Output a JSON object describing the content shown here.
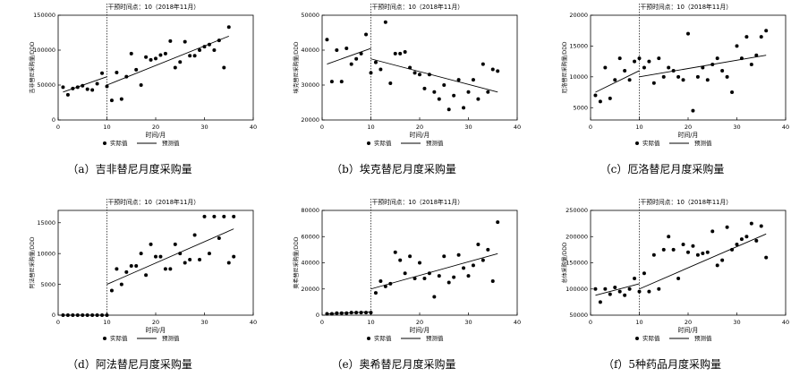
{
  "chart_data": [
    {
      "id": "a",
      "type": "scatter",
      "caption": "（a）吉非替尼月度采购量",
      "annotation": "干预时间点：10（2018年11月）",
      "xlabel": "时间/月",
      "ylabel": "吉非替尼采购量/DDD",
      "xlim": [
        0,
        40
      ],
      "ylim": [
        0,
        150000
      ],
      "xticks": [
        0,
        10,
        20,
        30,
        40
      ],
      "yticks": [
        0,
        50000,
        100000,
        150000
      ],
      "ytick_labels": [
        "0",
        "50000",
        "100000",
        "150000"
      ],
      "intervention_x": 10,
      "legend": [
        "实际值",
        "预测值"
      ],
      "points": [
        [
          1,
          47000
        ],
        [
          2,
          36000
        ],
        [
          3,
          45000
        ],
        [
          4,
          47000
        ],
        [
          5,
          49000
        ],
        [
          6,
          44000
        ],
        [
          7,
          43000
        ],
        [
          8,
          52000
        ],
        [
          9,
          67000
        ],
        [
          10,
          48000
        ],
        [
          11,
          28000
        ],
        [
          12,
          68000
        ],
        [
          13,
          30000
        ],
        [
          14,
          62000
        ],
        [
          15,
          95000
        ],
        [
          16,
          72000
        ],
        [
          17,
          50000
        ],
        [
          18,
          90000
        ],
        [
          19,
          86000
        ],
        [
          20,
          88000
        ],
        [
          21,
          93000
        ],
        [
          22,
          95000
        ],
        [
          23,
          113000
        ],
        [
          24,
          75000
        ],
        [
          25,
          83000
        ],
        [
          26,
          112000
        ],
        [
          27,
          92000
        ],
        [
          28,
          92000
        ],
        [
          29,
          100000
        ],
        [
          30,
          105000
        ],
        [
          31,
          108000
        ],
        [
          32,
          100000
        ],
        [
          33,
          114000
        ],
        [
          34,
          75000
        ],
        [
          35,
          133000
        ]
      ],
      "trend": [
        [
          [
            1,
            40000
          ],
          [
            10,
            62000
          ]
        ],
        [
          [
            10,
            50000
          ],
          [
            35,
            120000
          ]
        ]
      ]
    },
    {
      "id": "b",
      "type": "scatter",
      "caption": "（b）埃克替尼月度采购量",
      "annotation": "干预时间点：10（2018年11月）",
      "xlabel": "时间/月",
      "ylabel": "埃克替尼采购量/DDD",
      "xlim": [
        0,
        40
      ],
      "ylim": [
        20000,
        50000
      ],
      "xticks": [
        0,
        10,
        20,
        30,
        40
      ],
      "yticks": [
        20000,
        30000,
        40000,
        50000
      ],
      "ytick_labels": [
        "20000",
        "30000",
        "40000",
        "50000"
      ],
      "intervention_x": 10,
      "legend": [
        "实际值",
        "预测值"
      ],
      "points": [
        [
          1,
          43000
        ],
        [
          2,
          31000
        ],
        [
          3,
          40000
        ],
        [
          4,
          31000
        ],
        [
          5,
          40500
        ],
        [
          6,
          36000
        ],
        [
          7,
          37500
        ],
        [
          8,
          39000
        ],
        [
          9,
          44500
        ],
        [
          10,
          33500
        ],
        [
          11,
          36500
        ],
        [
          12,
          34500
        ],
        [
          13,
          48000
        ],
        [
          14,
          30500
        ],
        [
          15,
          39000
        ],
        [
          16,
          39000
        ],
        [
          17,
          39500
        ],
        [
          18,
          35000
        ],
        [
          19,
          33500
        ],
        [
          20,
          33000
        ],
        [
          21,
          29000
        ],
        [
          22,
          33000
        ],
        [
          23,
          28000
        ],
        [
          24,
          26000
        ],
        [
          25,
          30000
        ],
        [
          26,
          23000
        ],
        [
          27,
          27000
        ],
        [
          28,
          31500
        ],
        [
          29,
          23500
        ],
        [
          30,
          28000
        ],
        [
          31,
          31500
        ],
        [
          32,
          26000
        ],
        [
          33,
          36000
        ],
        [
          34,
          28000
        ],
        [
          35,
          34500
        ],
        [
          36,
          34000
        ]
      ],
      "trend": [
        [
          [
            1,
            36000
          ],
          [
            10,
            40500
          ]
        ],
        [
          [
            10,
            37500
          ],
          [
            36,
            28000
          ]
        ]
      ]
    },
    {
      "id": "c",
      "type": "scatter",
      "caption": "（c）厄洛替尼月度采购量",
      "annotation": "干预时间点：10（2018年11月）",
      "xlabel": "时间/月",
      "ylabel": "厄洛替尼采购量/DDD",
      "xlim": [
        0,
        40
      ],
      "ylim": [
        3000,
        20000
      ],
      "xticks": [
        0,
        10,
        20,
        30,
        40
      ],
      "yticks": [
        5000,
        10000,
        15000,
        20000
      ],
      "ytick_labels": [
        "5000",
        "10000",
        "15000",
        "20000"
      ],
      "intervention_x": 10,
      "legend": [
        "实际值",
        "预测值"
      ],
      "points": [
        [
          1,
          7000
        ],
        [
          2,
          6000
        ],
        [
          3,
          11500
        ],
        [
          4,
          6500
        ],
        [
          5,
          9500
        ],
        [
          6,
          13000
        ],
        [
          7,
          11000
        ],
        [
          8,
          9500
        ],
        [
          9,
          12500
        ],
        [
          10,
          13000
        ],
        [
          11,
          11500
        ],
        [
          12,
          12500
        ],
        [
          13,
          9000
        ],
        [
          14,
          13000
        ],
        [
          15,
          10000
        ],
        [
          16,
          11500
        ],
        [
          17,
          11000
        ],
        [
          18,
          10000
        ],
        [
          19,
          9500
        ],
        [
          20,
          17000
        ],
        [
          21,
          4500
        ],
        [
          22,
          10000
        ],
        [
          23,
          11500
        ],
        [
          24,
          9500
        ],
        [
          25,
          12000
        ],
        [
          26,
          13000
        ],
        [
          27,
          11000
        ],
        [
          28,
          10000
        ],
        [
          29,
          7500
        ],
        [
          30,
          15000
        ],
        [
          31,
          13000
        ],
        [
          32,
          16500
        ],
        [
          33,
          12000
        ],
        [
          34,
          13500
        ],
        [
          35,
          16500
        ],
        [
          36,
          17500
        ]
      ],
      "trend": [
        [
          [
            1,
            7500
          ],
          [
            10,
            11000
          ]
        ],
        [
          [
            10,
            10000
          ],
          [
            36,
            13500
          ]
        ]
      ]
    },
    {
      "id": "d",
      "type": "scatter",
      "caption": "（d）阿法替尼月度采购量",
      "annotation": "干预时间点：10（2018年11月）",
      "xlabel": "时间/月",
      "ylabel": "阿法替尼采购量/DDD",
      "xlim": [
        0,
        40
      ],
      "ylim": [
        0,
        17000
      ],
      "xticks": [
        0,
        10,
        20,
        30,
        40
      ],
      "yticks": [
        0,
        5000,
        10000,
        15000
      ],
      "ytick_labels": [
        "0",
        "5000",
        "10000",
        "15000"
      ],
      "intervention_x": 10,
      "legend": [
        "实际值",
        "预测值"
      ],
      "points": [
        [
          1,
          0
        ],
        [
          2,
          0
        ],
        [
          3,
          0
        ],
        [
          4,
          0
        ],
        [
          5,
          0
        ],
        [
          6,
          0
        ],
        [
          7,
          0
        ],
        [
          8,
          0
        ],
        [
          9,
          0
        ],
        [
          10,
          0
        ],
        [
          11,
          4000
        ],
        [
          12,
          7500
        ],
        [
          13,
          5000
        ],
        [
          14,
          7000
        ],
        [
          15,
          8000
        ],
        [
          16,
          8000
        ],
        [
          17,
          10000
        ],
        [
          18,
          6500
        ],
        [
          19,
          11500
        ],
        [
          20,
          9500
        ],
        [
          21,
          9500
        ],
        [
          22,
          7500
        ],
        [
          23,
          7500
        ],
        [
          24,
          11500
        ],
        [
          25,
          10000
        ],
        [
          26,
          8500
        ],
        [
          27,
          9000
        ],
        [
          28,
          13000
        ],
        [
          29,
          9000
        ],
        [
          30,
          16000
        ],
        [
          31,
          10000
        ],
        [
          32,
          16000
        ],
        [
          33,
          12500
        ],
        [
          34,
          16000
        ],
        [
          35,
          8500
        ],
        [
          36,
          9500
        ],
        [
          36,
          16000
        ]
      ],
      "trend": [
        [
          [
            1,
            0
          ],
          [
            10,
            0
          ]
        ],
        [
          [
            10,
            5000
          ],
          [
            36,
            14000
          ]
        ]
      ]
    },
    {
      "id": "e",
      "type": "scatter",
      "caption": "（e）奥希替尼月度采购量",
      "annotation": "干预时间点：10（2018年11月）",
      "xlabel": "时间/月",
      "ylabel": "奥希替尼采购量/DDD",
      "xlim": [
        0,
        40
      ],
      "ylim": [
        0,
        80000
      ],
      "xticks": [
        0,
        10,
        20,
        30,
        40
      ],
      "yticks": [
        0,
        20000,
        40000,
        60000,
        80000
      ],
      "ytick_labels": [
        "0",
        "20000",
        "40000",
        "60000",
        "80000"
      ],
      "intervention_x": 10,
      "legend": [
        "实际值",
        "预测值"
      ],
      "points": [
        [
          1,
          1000
        ],
        [
          2,
          1000
        ],
        [
          3,
          1500
        ],
        [
          4,
          1500
        ],
        [
          5,
          1500
        ],
        [
          6,
          2000
        ],
        [
          7,
          2000
        ],
        [
          8,
          2000
        ],
        [
          9,
          2000
        ],
        [
          10,
          2000
        ],
        [
          11,
          17000
        ],
        [
          12,
          26000
        ],
        [
          13,
          22000
        ],
        [
          14,
          24000
        ],
        [
          15,
          48000
        ],
        [
          16,
          42000
        ],
        [
          17,
          32000
        ],
        [
          18,
          45000
        ],
        [
          19,
          28000
        ],
        [
          20,
          40000
        ],
        [
          21,
          28000
        ],
        [
          22,
          32000
        ],
        [
          23,
          14000
        ],
        [
          24,
          30000
        ],
        [
          25,
          45000
        ],
        [
          26,
          25000
        ],
        [
          27,
          29000
        ],
        [
          28,
          46000
        ],
        [
          29,
          36000
        ],
        [
          30,
          30000
        ],
        [
          31,
          38000
        ],
        [
          32,
          54000
        ],
        [
          33,
          42000
        ],
        [
          34,
          50000
        ],
        [
          35,
          26000
        ],
        [
          36,
          71000
        ]
      ],
      "trend": [
        [
          [
            1,
            1000
          ],
          [
            10,
            2500
          ]
        ],
        [
          [
            10,
            20000
          ],
          [
            36,
            47000
          ]
        ]
      ]
    },
    {
      "id": "f",
      "type": "scatter",
      "caption": "（f）5种药品月度采购量",
      "annotation": "干预时间点：10（2018年11月）",
      "xlabel": "时间/月",
      "ylabel": "总体采购量/DDD",
      "xlim": [
        0,
        40
      ],
      "ylim": [
        50000,
        250000
      ],
      "xticks": [
        0,
        10,
        20,
        30,
        40
      ],
      "yticks": [
        50000,
        100000,
        150000,
        200000,
        250000
      ],
      "ytick_labels": [
        "50000",
        "100000",
        "150000",
        "200000",
        "250000"
      ],
      "intervention_x": 10,
      "legend": [
        "实际值",
        "预测值"
      ],
      "points": [
        [
          1,
          100000
        ],
        [
          2,
          75000
        ],
        [
          3,
          100000
        ],
        [
          4,
          90000
        ],
        [
          5,
          103000
        ],
        [
          6,
          95000
        ],
        [
          7,
          88000
        ],
        [
          8,
          100000
        ],
        [
          9,
          120000
        ],
        [
          10,
          95000
        ],
        [
          11,
          130000
        ],
        [
          12,
          95000
        ],
        [
          13,
          165000
        ],
        [
          14,
          100000
        ],
        [
          15,
          175000
        ],
        [
          16,
          200000
        ],
        [
          17,
          175000
        ],
        [
          18,
          120000
        ],
        [
          19,
          185000
        ],
        [
          20,
          170000
        ],
        [
          21,
          182000
        ],
        [
          22,
          165000
        ],
        [
          23,
          168000
        ],
        [
          24,
          170000
        ],
        [
          25,
          210000
        ],
        [
          26,
          145000
        ],
        [
          27,
          155000
        ],
        [
          28,
          218000
        ],
        [
          29,
          175000
        ],
        [
          30,
          185000
        ],
        [
          31,
          195000
        ],
        [
          32,
          200000
        ],
        [
          33,
          225000
        ],
        [
          34,
          192000
        ],
        [
          35,
          220000
        ],
        [
          36,
          160000
        ]
      ],
      "trend": [
        [
          [
            1,
            88000
          ],
          [
            10,
            110000
          ]
        ],
        [
          [
            10,
            100000
          ],
          [
            36,
            205000
          ]
        ]
      ]
    }
  ]
}
